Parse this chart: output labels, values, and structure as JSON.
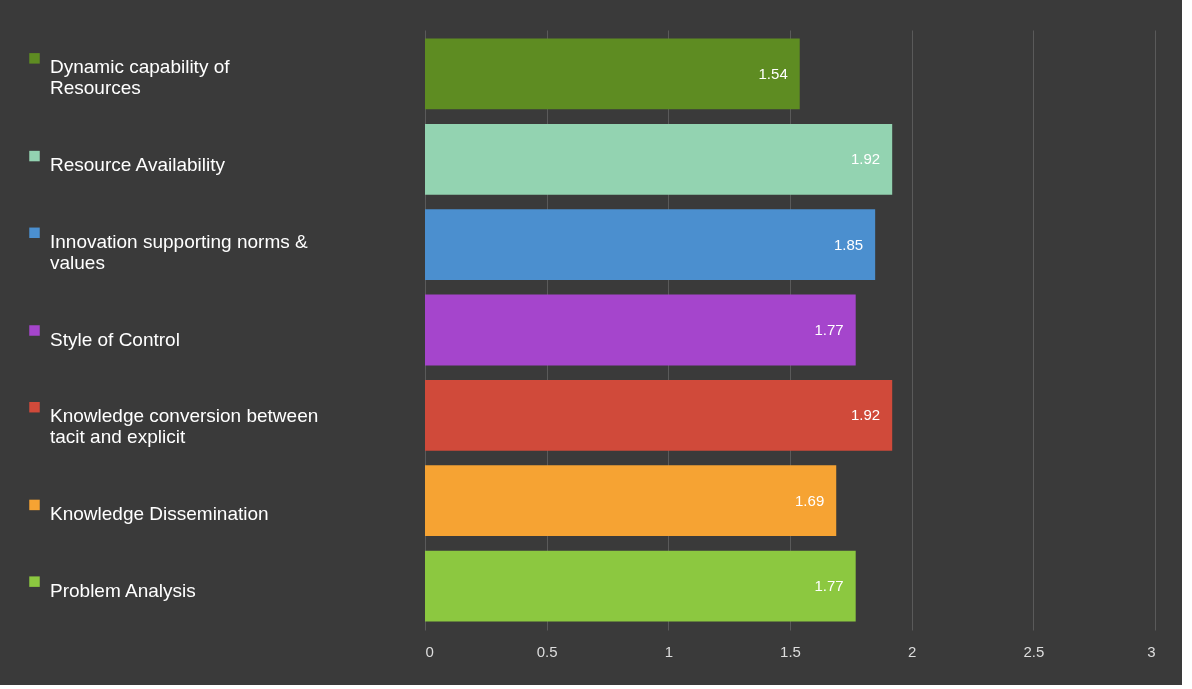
{
  "chart_data": {
    "type": "bar",
    "orientation": "horizontal",
    "categories": [
      null,
      null,
      null,
      null,
      null,
      null,
      null
    ],
    "series": [
      {
        "name": "Dynamic capability of Resources",
        "color": "#5e8c22",
        "values": [
          1.54,
          null,
          null,
          null,
          null,
          null,
          null
        ]
      },
      {
        "name": "Resource Availability",
        "color": "#93d3b1",
        "values": [
          null,
          1.92,
          null,
          null,
          null,
          null,
          null
        ]
      },
      {
        "name": "Innovation supporting norms & values",
        "color": "#4b8fcf",
        "values": [
          null,
          null,
          1.85,
          null,
          null,
          null,
          null
        ]
      },
      {
        "name": "Style of Control",
        "color": "#a545cc",
        "values": [
          null,
          null,
          null,
          1.77,
          null,
          null,
          null
        ]
      },
      {
        "name": "Knowledge conversion between tacit and explicit",
        "color": "#d04a3a",
        "values": [
          null,
          null,
          null,
          null,
          1.92,
          null,
          null
        ]
      },
      {
        "name": "Knowledge Dissemination",
        "color": "#f6a333",
        "values": [
          null,
          null,
          null,
          null,
          null,
          1.69,
          null
        ]
      },
      {
        "name": "Problem Analysis",
        "color": "#8cc840",
        "values": [
          null,
          null,
          null,
          null,
          null,
          null,
          1.77
        ]
      }
    ],
    "xlim": [
      0,
      3
    ],
    "xticks": [
      0,
      0.5,
      1,
      1.5,
      2,
      2.5,
      3
    ],
    "grid": "x",
    "legend": "left",
    "data_labels": true
  }
}
